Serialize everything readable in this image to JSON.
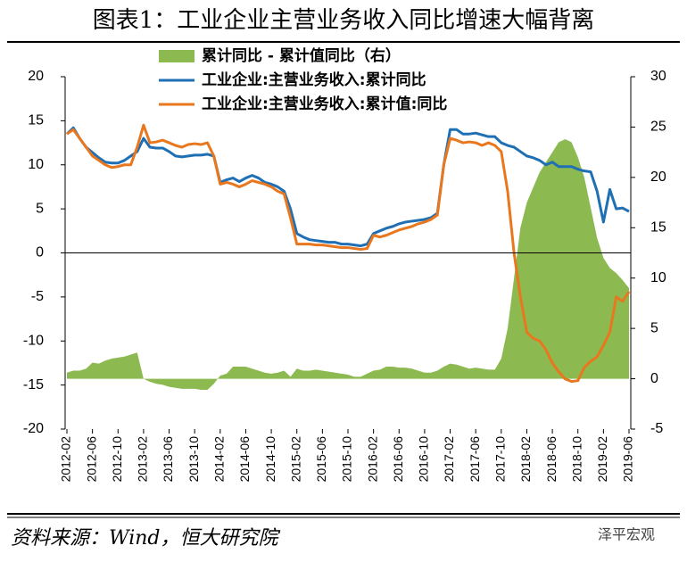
{
  "chart_data": {
    "type": "line",
    "title": "图表1：工业企业主营业务收入同比增速大幅背离",
    "source": "资料来源：Wind，恒大研究院",
    "watermark": "泽平宏观",
    "categories": [
      "2012-02",
      null,
      null,
      null,
      "2012-06",
      null,
      null,
      null,
      "2012-10",
      null,
      null,
      null,
      "2013-02",
      null,
      null,
      null,
      "2013-06",
      null,
      null,
      null,
      "2013-10",
      null,
      null,
      null,
      "2014-02",
      null,
      null,
      null,
      "2014-06",
      null,
      null,
      null,
      "2014-10",
      null,
      null,
      null,
      "2015-02",
      null,
      null,
      null,
      "2015-06",
      null,
      null,
      null,
      "2015-10",
      null,
      null,
      null,
      "2016-02",
      null,
      null,
      null,
      "2016-06",
      null,
      null,
      null,
      "2016-10",
      null,
      null,
      null,
      "2017-02",
      null,
      null,
      null,
      "2017-06",
      null,
      null,
      null,
      "2017-10",
      null,
      null,
      null,
      "2018-02",
      null,
      null,
      null,
      "2018-06",
      null,
      null,
      null,
      "2018-10",
      null,
      null,
      null,
      "2019-02",
      null,
      null,
      null,
      "2019-06"
    ],
    "ylim": [
      -20,
      20
    ],
    "yticks": [
      20,
      15,
      10,
      5,
      0,
      -5,
      -10,
      -15,
      -20
    ],
    "y2lim": [
      -5,
      30
    ],
    "y2ticks": [
      30,
      25,
      20,
      15,
      10,
      5,
      0,
      -5
    ],
    "series": [
      {
        "name": "累计同比 - 累计值同比（右）",
        "kind": "area",
        "axis": "y2",
        "color": "#8cba51",
        "values": [
          0.6,
          0.8,
          0.8,
          1,
          1.6,
          1.5,
          1.8,
          2,
          2.1,
          2.2,
          2.4,
          2.6,
          0,
          -0.3,
          -0.5,
          -0.6,
          -0.8,
          -0.9,
          -1,
          -1,
          -1,
          -1.1,
          -1.1,
          -0.5,
          0.3,
          0.5,
          1.2,
          1.2,
          1.2,
          1,
          0.8,
          0.6,
          0.5,
          0.6,
          0.8,
          0.2,
          1,
          0.8,
          0.8,
          0.9,
          0.8,
          0.7,
          0.6,
          0.5,
          0.4,
          0.2,
          0.2,
          0.5,
          0.8,
          0.9,
          1.2,
          1.2,
          1.1,
          1.1,
          1,
          0.8,
          0.6,
          0.6,
          0.8,
          1.2,
          1.5,
          1.4,
          1.2,
          1,
          1.1,
          1,
          0.9,
          0.9,
          2,
          5,
          10,
          15,
          17.5,
          19,
          20.5,
          21.5,
          22.5,
          23.5,
          23.8,
          23.5,
          22,
          20,
          17,
          14,
          12,
          11,
          10.5,
          9.8,
          9
        ]
      },
      {
        "name": "工业企业:主营业务收入:累计同比",
        "kind": "line",
        "color": "#1f6fb4",
        "values": [
          13.5,
          14.2,
          13,
          12,
          11.4,
          10.8,
          10.3,
          10.2,
          10.2,
          10.5,
          11,
          11.5,
          13,
          12,
          11.9,
          11.9,
          11.5,
          11,
          10.9,
          11,
          11.1,
          11.1,
          11.2,
          11,
          8,
          8.3,
          8.5,
          8.1,
          8.5,
          8.8,
          8.5,
          8,
          7.8,
          7.5,
          7,
          5,
          2.2,
          1.8,
          1.5,
          1.4,
          1.3,
          1.2,
          1.2,
          1,
          1,
          0.9,
          0.8,
          1,
          2.2,
          2.5,
          2.8,
          3,
          3.3,
          3.5,
          3.6,
          3.7,
          3.8,
          4,
          4.5,
          10,
          14,
          14,
          13.5,
          13.5,
          13.6,
          13.4,
          13.2,
          13.2,
          12.5,
          12.2,
          12,
          11.5,
          11,
          10.8,
          10.5,
          10,
          10.3,
          9.8,
          9.8,
          9.8,
          9.5,
          9.3,
          9.2,
          7,
          3.5,
          7.2,
          5,
          5.1,
          4.7
        ]
      },
      {
        "name": "工业企业:主营业务收入:累计值:同比",
        "kind": "line",
        "color": "#e8771e",
        "values": [
          13.5,
          14,
          13,
          12,
          11,
          10.5,
          10,
          9.7,
          9.8,
          10,
          10,
          12,
          14.5,
          12.5,
          12.6,
          12.8,
          12.5,
          12.2,
          12,
          12.3,
          12.4,
          12.3,
          12.5,
          11,
          7.8,
          8,
          7.8,
          7.5,
          7.8,
          8.2,
          8,
          7.8,
          7.5,
          7,
          6.7,
          4,
          1,
          1,
          1,
          0.9,
          0.9,
          0.8,
          0.7,
          0.6,
          0.6,
          0.5,
          0.4,
          0.5,
          2,
          1.8,
          2,
          2.3,
          2.6,
          2.8,
          3,
          3.3,
          3.5,
          3.8,
          4.3,
          10,
          13,
          12.8,
          12.5,
          12.6,
          12.5,
          12.2,
          12.5,
          12.2,
          11.5,
          7,
          0,
          -5,
          -9,
          -9.7,
          -10,
          -11,
          -12.5,
          -13.5,
          -14.3,
          -14.6,
          -14.5,
          -13,
          -12.3,
          -11.8,
          -10.5,
          -9,
          -5,
          -5.5,
          -4.4
        ]
      }
    ]
  }
}
